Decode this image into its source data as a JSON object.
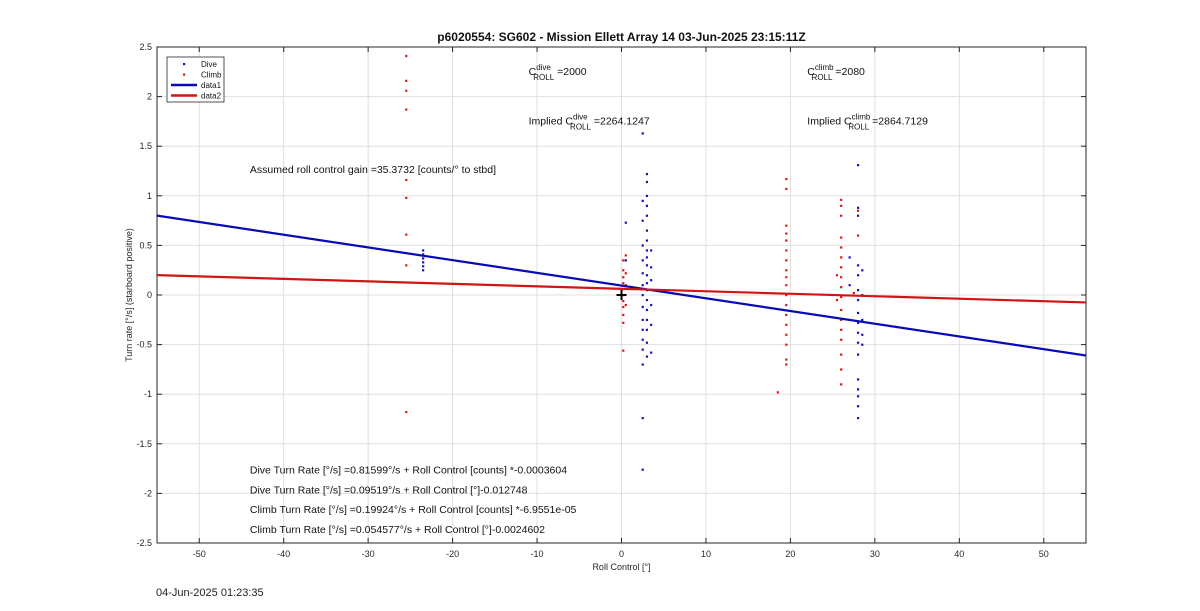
{
  "chart_data": {
    "type": "scatter",
    "title": "p6020554: SG602 - Mission Ellett Array 14 03-Jun-2025 23:15:11Z",
    "xlabel": "Roll Control [°]",
    "ylabel": "Turn rate [°/s] (starboard positive)",
    "xlim": [
      -55,
      55
    ],
    "ylim": [
      -2.5,
      2.5
    ],
    "x_ticks": [
      -50,
      -40,
      -30,
      -20,
      -10,
      0,
      10,
      20,
      30,
      40,
      50
    ],
    "y_ticks": [
      -2.5,
      -2,
      -1.5,
      -1,
      -0.5,
      0,
      0.5,
      1,
      1.5,
      2,
      2.5
    ],
    "grid": true,
    "legend": {
      "position": "top-left",
      "entries": [
        "Dive",
        "Climb",
        "data1",
        "data2"
      ]
    },
    "colors": {
      "dive": "#1414b4",
      "climb": "#dc1414",
      "data1": "#0a0ab4",
      "data2": "#d21414",
      "origin": "#000000"
    },
    "series": [
      {
        "name": "Dive",
        "marker": "point",
        "points": [
          [
            -23.5,
            0.45
          ],
          [
            -23.5,
            0.41
          ],
          [
            -23.5,
            0.37
          ],
          [
            -23.5,
            0.33
          ],
          [
            -23.5,
            0.29
          ],
          [
            -23.5,
            0.25
          ],
          [
            0.5,
            0.73
          ],
          [
            0.5,
            0.35
          ],
          [
            2.5,
            1.63
          ],
          [
            2.5,
            0.95
          ],
          [
            2.5,
            0.75
          ],
          [
            2.5,
            0.5
          ],
          [
            2.5,
            0.35
          ],
          [
            2.5,
            0.22
          ],
          [
            2.5,
            0.1
          ],
          [
            2.5,
            0.0
          ],
          [
            2.5,
            -0.12
          ],
          [
            2.5,
            -0.25
          ],
          [
            2.5,
            -0.35
          ],
          [
            2.5,
            -0.45
          ],
          [
            2.5,
            -0.55
          ],
          [
            2.5,
            -0.7
          ],
          [
            2.5,
            -1.24
          ],
          [
            2.5,
            -1.76
          ],
          [
            3.0,
            1.22
          ],
          [
            3.0,
            1.14
          ],
          [
            3.0,
            1.0
          ],
          [
            3.0,
            0.9
          ],
          [
            3.0,
            0.8
          ],
          [
            3.0,
            0.65
          ],
          [
            3.0,
            0.55
          ],
          [
            3.0,
            0.45
          ],
          [
            3.0,
            0.38
          ],
          [
            3.0,
            0.3
          ],
          [
            3.0,
            0.2
          ],
          [
            3.0,
            0.12
          ],
          [
            3.0,
            0.05
          ],
          [
            3.0,
            -0.05
          ],
          [
            3.0,
            -0.15
          ],
          [
            3.0,
            -0.25
          ],
          [
            3.0,
            -0.35
          ],
          [
            3.0,
            -0.48
          ],
          [
            3.0,
            -0.62
          ],
          [
            3.5,
            0.45
          ],
          [
            3.5,
            0.28
          ],
          [
            3.5,
            0.15
          ],
          [
            3.5,
            -0.1
          ],
          [
            3.5,
            -0.3
          ],
          [
            3.5,
            -0.58
          ],
          [
            27.0,
            0.38
          ],
          [
            27.0,
            0.1
          ],
          [
            28.0,
            1.31
          ],
          [
            28.0,
            0.88
          ],
          [
            28.0,
            0.8
          ],
          [
            28.0,
            0.3
          ],
          [
            28.0,
            0.2
          ],
          [
            28.0,
            0.05
          ],
          [
            28.0,
            -0.05
          ],
          [
            28.0,
            -0.18
          ],
          [
            28.0,
            -0.28
          ],
          [
            28.0,
            -0.38
          ],
          [
            28.0,
            -0.48
          ],
          [
            28.0,
            -0.6
          ],
          [
            28.0,
            -0.85
          ],
          [
            28.0,
            -0.95
          ],
          [
            28.0,
            -1.02
          ],
          [
            28.0,
            -1.12
          ],
          [
            28.0,
            -1.24
          ],
          [
            28.5,
            0.25
          ],
          [
            28.5,
            0.0
          ],
          [
            28.5,
            -0.25
          ],
          [
            28.5,
            -0.4
          ],
          [
            28.5,
            -0.5
          ]
        ]
      },
      {
        "name": "Climb",
        "marker": "point",
        "points": [
          [
            -25.5,
            2.41
          ],
          [
            -25.5,
            2.16
          ],
          [
            -25.5,
            2.06
          ],
          [
            -25.5,
            1.87
          ],
          [
            -25.5,
            1.16
          ],
          [
            -25.5,
            0.98
          ],
          [
            -25.5,
            0.61
          ],
          [
            -25.5,
            0.3
          ],
          [
            -25.5,
            -1.18
          ],
          [
            0.2,
            0.35
          ],
          [
            0.2,
            0.25
          ],
          [
            0.2,
            0.18
          ],
          [
            0.2,
            0.12
          ],
          [
            0.2,
            0.06
          ],
          [
            0.2,
            0.0
          ],
          [
            0.2,
            -0.06
          ],
          [
            0.2,
            -0.12
          ],
          [
            0.2,
            -0.2
          ],
          [
            0.2,
            -0.28
          ],
          [
            0.2,
            -0.56
          ],
          [
            0.5,
            0.4
          ],
          [
            0.5,
            0.22
          ],
          [
            0.5,
            0.1
          ],
          [
            0.5,
            -0.1
          ],
          [
            18.5,
            -0.98
          ],
          [
            19.5,
            1.17
          ],
          [
            19.5,
            1.07
          ],
          [
            19.5,
            0.7
          ],
          [
            19.5,
            0.62
          ],
          [
            19.5,
            0.55
          ],
          [
            19.5,
            0.45
          ],
          [
            19.5,
            0.35
          ],
          [
            19.5,
            0.25
          ],
          [
            19.5,
            0.18
          ],
          [
            19.5,
            0.1
          ],
          [
            19.5,
            0.0
          ],
          [
            19.5,
            -0.1
          ],
          [
            19.5,
            -0.2
          ],
          [
            19.5,
            -0.3
          ],
          [
            19.5,
            -0.4
          ],
          [
            19.5,
            -0.5
          ],
          [
            19.5,
            -0.65
          ],
          [
            19.5,
            -0.7
          ],
          [
            25.5,
            0.2
          ],
          [
            25.5,
            -0.05
          ],
          [
            26.0,
            0.96
          ],
          [
            26.0,
            0.9
          ],
          [
            26.0,
            0.8
          ],
          [
            26.0,
            0.58
          ],
          [
            26.0,
            0.48
          ],
          [
            26.0,
            0.38
          ],
          [
            26.0,
            0.28
          ],
          [
            26.0,
            0.18
          ],
          [
            26.0,
            0.08
          ],
          [
            26.0,
            -0.02
          ],
          [
            26.0,
            -0.15
          ],
          [
            26.0,
            -0.25
          ],
          [
            26.0,
            -0.35
          ],
          [
            26.0,
            -0.45
          ],
          [
            26.0,
            -0.6
          ],
          [
            26.0,
            -0.75
          ],
          [
            26.0,
            -0.9
          ],
          [
            27.5,
            0.02
          ],
          [
            28.0,
            0.85
          ],
          [
            28.0,
            0.6
          ]
        ]
      },
      {
        "name": "data1",
        "marker": "line",
        "points": [
          [
            -55,
            0.8
          ],
          [
            55,
            -0.61
          ]
        ]
      },
      {
        "name": "data2",
        "marker": "line",
        "points": [
          [
            -55,
            0.2
          ],
          [
            55,
            -0.075
          ]
        ]
      }
    ],
    "origin_marker": [
      0,
      0
    ],
    "annotations": [
      {
        "prefix": "C",
        "sup": "dive",
        "sub": "ROLL",
        "suffix": " =2000",
        "x": -11,
        "y": 2.22
      },
      {
        "prefix": "C",
        "sup": "climb",
        "sub": "ROLL",
        "suffix": " =2080",
        "x": 22,
        "y": 2.22
      },
      {
        "prefix": "Implied C",
        "sup": "dive",
        "sub": "ROLL",
        "suffix": " =2264.1247",
        "x": -11,
        "y": 1.72
      },
      {
        "prefix": "Implied C",
        "sup": "climb",
        "sub": "ROLL",
        "suffix": " =2864.7129",
        "x": 22,
        "y": 1.72
      },
      {
        "text": "Assumed roll control gain =35.3732 [counts/° to stbd]",
        "x": -44,
        "y": 1.23
      },
      {
        "text": "Dive Turn Rate [°/s] =0.81599°/s + Roll Control [counts] *-0.0003604",
        "x": -44,
        "y": -1.8
      },
      {
        "text": "Dive Turn Rate [°/s] =0.09519°/s + Roll Control [°]-0.012748",
        "x": -44,
        "y": -2.0
      },
      {
        "text": "Climb Turn Rate [°/s] =0.19924°/s + Roll Control [counts] *-6.9551e-05",
        "x": -44,
        "y": -2.2
      },
      {
        "text": "Climb Turn Rate [°/s] =0.054577°/s + Roll Control [°]-0.0024602",
        "x": -44,
        "y": -2.4
      }
    ]
  },
  "footer": {
    "timestamp": "04-Jun-2025 01:23:35"
  }
}
